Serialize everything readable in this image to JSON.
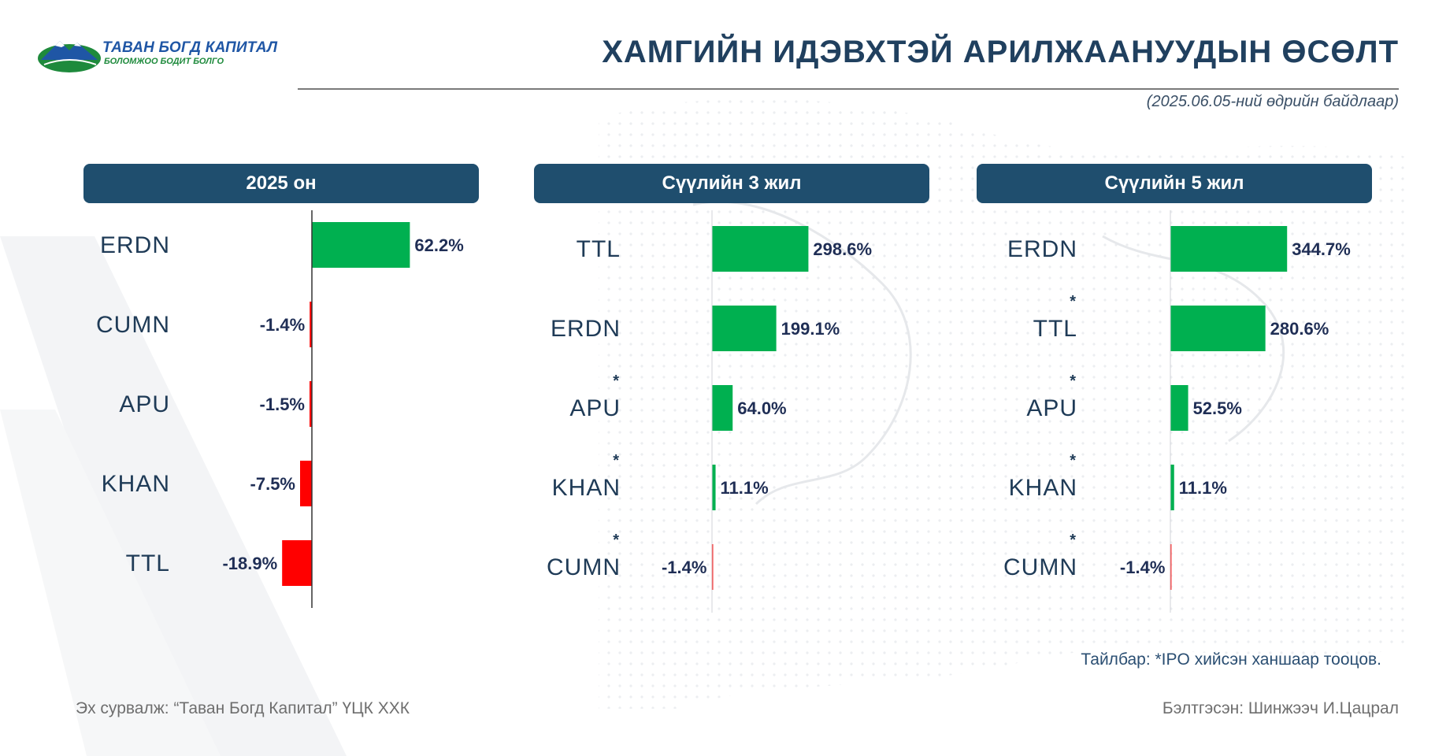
{
  "header": {
    "logo_title": "ТАВАН БОГД КАПИТАЛ",
    "logo_tagline": "БОЛОМЖОО БОДИТ БОЛГО",
    "title": "ХАМГИЙН ИДЭВХТЭЙ АРИЛЖААНУУДЫН ӨСӨЛТ",
    "subtitle": "(2025.06.05-ний өдрийн байдлаар)"
  },
  "colors": {
    "positive": "#00b050",
    "negative": "#ff0000",
    "header_bg": "#1f4e6e",
    "title": "#20405f"
  },
  "chart_data": [
    {
      "type": "bar",
      "orientation": "horizontal",
      "title": "2025 он",
      "categories": [
        "ERDN",
        "CUMN",
        "APU",
        "KHAN",
        "TTL"
      ],
      "values": [
        62.2,
        -1.4,
        -1.5,
        -7.5,
        -18.9
      ],
      "labels": [
        "62.2%",
        "-1.4%",
        "-1.5%",
        "-7.5%",
        "-18.9%"
      ],
      "ipo_flag": [
        false,
        false,
        false,
        false,
        false
      ],
      "unit": "%"
    },
    {
      "type": "bar",
      "orientation": "horizontal",
      "title": "Сүүлийн 3 жил",
      "categories": [
        "TTL",
        "ERDN",
        "APU",
        "KHAN",
        "CUMN"
      ],
      "values": [
        298.6,
        199.1,
        64.0,
        11.1,
        -1.4
      ],
      "labels": [
        "298.6%",
        "199.1%",
        "64.0%",
        "11.1%",
        "-1.4%"
      ],
      "ipo_flag": [
        false,
        false,
        true,
        true,
        true
      ],
      "unit": "%"
    },
    {
      "type": "bar",
      "orientation": "horizontal",
      "title": "Сүүлийн 5 жил",
      "categories": [
        "ERDN",
        "TTL",
        "APU",
        "KHAN",
        "CUMN"
      ],
      "values": [
        344.7,
        280.6,
        52.5,
        11.1,
        -1.4
      ],
      "labels": [
        "344.7%",
        "280.6%",
        "52.5%",
        "11.1%",
        "-1.4%"
      ],
      "ipo_flag": [
        false,
        true,
        true,
        true,
        true
      ],
      "unit": "%"
    }
  ],
  "footer": {
    "note": "Тайлбар: *IPO хийсэн ханшаар тооцов.",
    "source": "Эх сурвалж: “Таван Богд Капитал” ҮЦК ХХК",
    "prepared": "Бэлтгэсэн: Шинжээч И.Цацрал"
  }
}
